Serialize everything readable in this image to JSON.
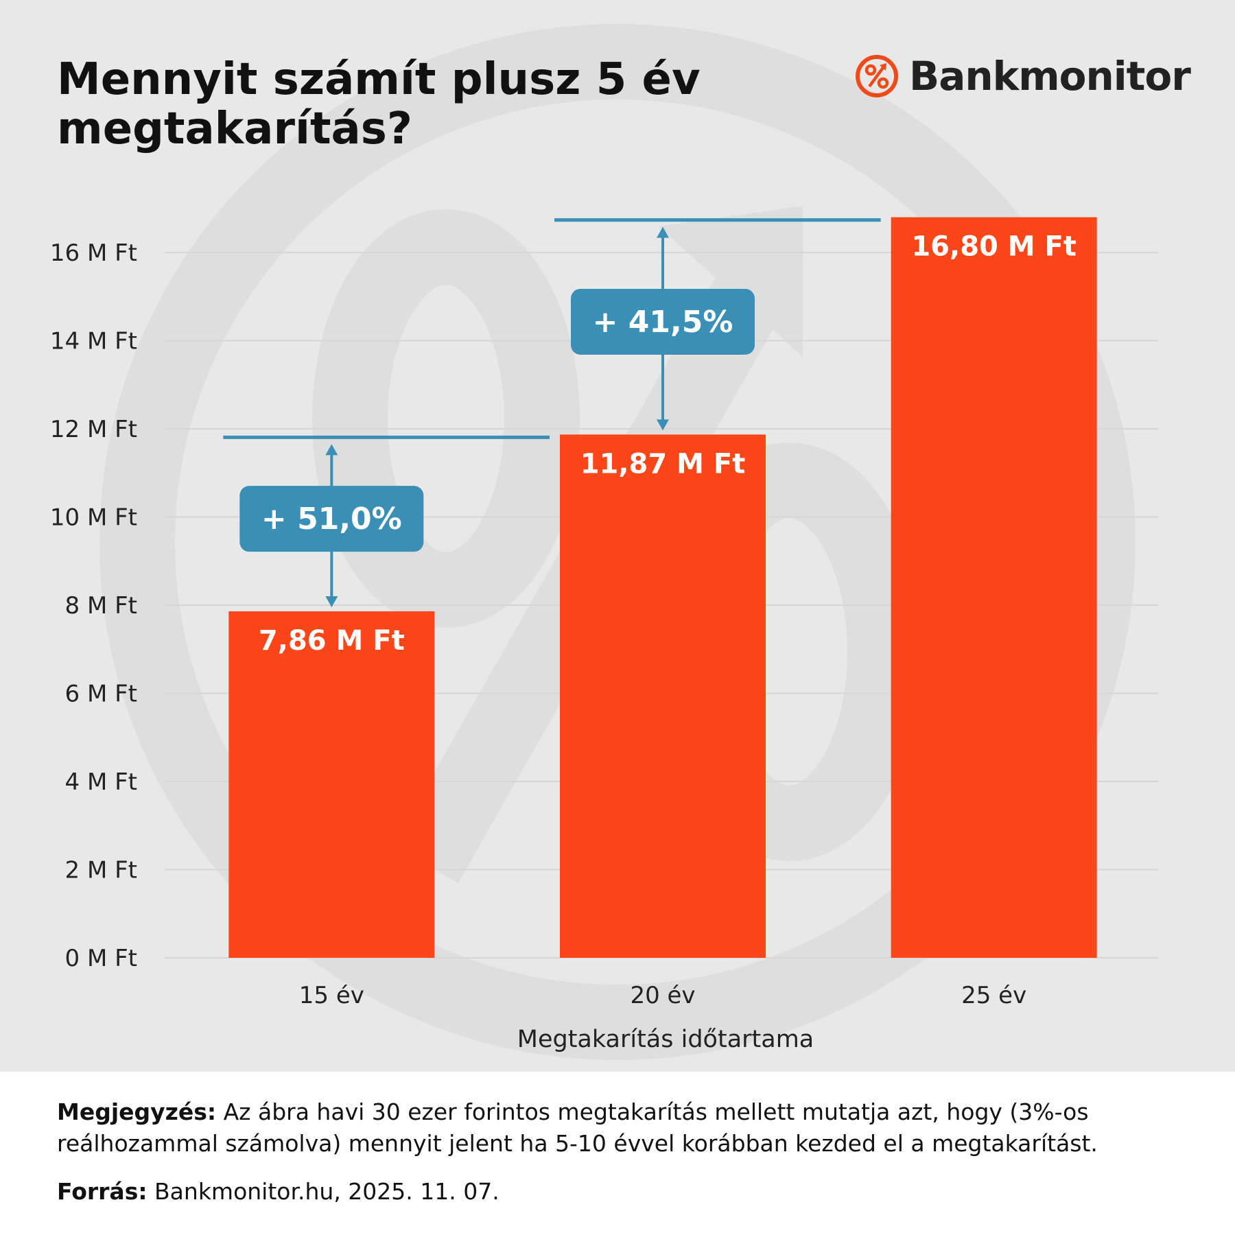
{
  "title": "Mennyit számít plusz 5 év megtakarítás?",
  "brand": {
    "name": "Bankmonitor",
    "icon": "percent-arrow-icon",
    "color": "#f04a1a"
  },
  "colors": {
    "bar": "#fb4619",
    "annotation": "#3a8fb7",
    "panel": "#e8e8e8",
    "grid": "#d6d6d6"
  },
  "chart_data": {
    "type": "bar",
    "categories": [
      "15 év",
      "20 év",
      "25 év"
    ],
    "values": [
      7.86,
      11.87,
      16.8
    ],
    "value_labels": [
      "7,86 M Ft",
      "11,87 M Ft",
      "16,80 M Ft"
    ],
    "xlabel": "Megtakarítás időtartama",
    "ylabel": "",
    "ylim": [
      0,
      16
    ],
    "yticks": [
      0,
      2,
      4,
      6,
      8,
      10,
      12,
      14,
      16
    ],
    "ytick_labels": [
      "0 M Ft",
      "2 M Ft",
      "4 M Ft",
      "6 M Ft",
      "8 M Ft",
      "10 M Ft",
      "12 M Ft",
      "14 M Ft",
      "16 M Ft"
    ],
    "grid": true,
    "annotations": [
      {
        "from": 0,
        "to": 1,
        "label": "+ 51,0%"
      },
      {
        "from": 1,
        "to": 2,
        "label": "+ 41,5%"
      }
    ]
  },
  "footer": {
    "note_label": "Megjegyzés:",
    "note_text": " Az ábra havi 30 ezer forintos megtakarítás mellett mutatja azt, hogy (3%-os reálhozammal számolva) mennyit jelent ha 5-10 évvel korábban kezded el a megtakarítást.",
    "source_label": "Forrás:",
    "source_text": " Bankmonitor.hu, 2025. 11. 07."
  }
}
